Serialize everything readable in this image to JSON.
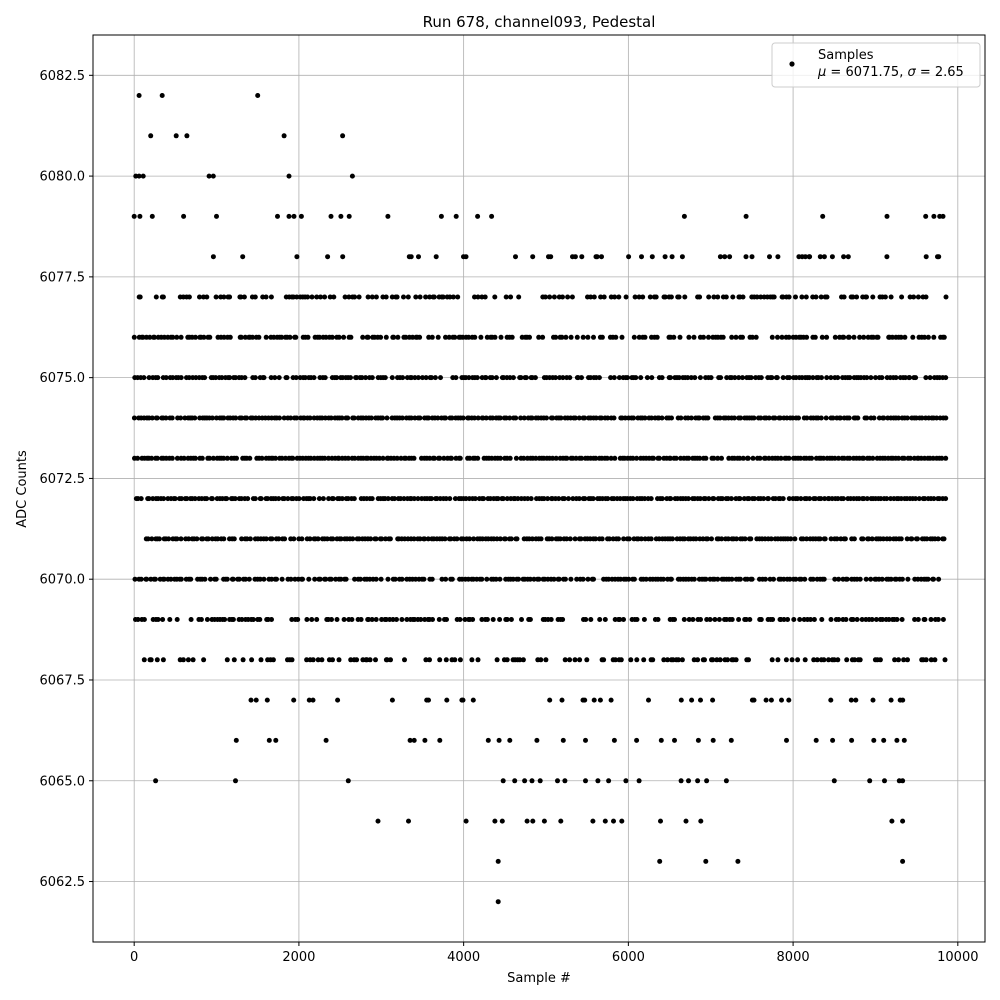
{
  "chart_data": {
    "type": "scatter",
    "title": "Run 678, channel093, Pedestal",
    "xlabel": "Sample #",
    "ylabel": "ADC Counts",
    "xlim": [
      -500,
      10330
    ],
    "ylim": [
      6061.0,
      6083.5
    ],
    "xticks": [
      0,
      2000,
      4000,
      6000,
      8000,
      10000
    ],
    "xtick_labels": [
      "0",
      "2000",
      "4000",
      "6000",
      "8000",
      "10000"
    ],
    "yticks": [
      6062.5,
      6065.0,
      6067.5,
      6070.0,
      6072.5,
      6075.0,
      6077.5,
      6080.0,
      6082.5
    ],
    "ytick_labels": [
      "6062.5",
      "6065.0",
      "6067.5",
      "6070.0",
      "6072.5",
      "6075.0",
      "6077.5",
      "6080.0",
      "6082.5"
    ],
    "grid": true,
    "legend": {
      "position": "top-right",
      "entries": [
        "Samples",
        "$\\mu$ = 6071.75, $\\sigma$ = 2.65"
      ],
      "label_line1": "Samples",
      "label_line2_mu": "μ",
      "label_line2_mid": " = 6071.75, ",
      "label_line2_sigma": "σ",
      "label_line2_end": " = 2.65"
    },
    "marker_color": "#000000",
    "series": [
      {
        "name": "Samples",
        "n_samples": 9840,
        "dense_levels": [
          {
            "y": 6067,
            "x_range": [
              1050,
              9330
            ],
            "density": 0.18
          },
          {
            "y": 6068,
            "x_range": [
              60,
              9840
            ],
            "density": 0.45
          },
          {
            "y": 6069,
            "x_range": [
              10,
              9840
            ],
            "density": 0.65
          },
          {
            "y": 6070,
            "x_range": [
              10,
              9840
            ],
            "density": 0.82
          },
          {
            "y": 6071,
            "x_range": [
              130,
              9840
            ],
            "density": 0.9
          },
          {
            "y": 6072,
            "x_range": [
              0,
              9840
            ],
            "density": 0.96
          },
          {
            "y": 6073,
            "x_range": [
              0,
              9840
            ],
            "density": 0.95
          },
          {
            "y": 6074,
            "x_range": [
              0,
              9840
            ],
            "density": 0.96
          },
          {
            "y": 6075,
            "x_range": [
              0,
              9840
            ],
            "density": 0.82
          },
          {
            "y": 6076,
            "x_range": [
              0,
              9840
            ],
            "density": 0.7
          },
          {
            "y": 6077,
            "x_range": [
              0,
              9840
            ],
            "density": 0.55
          },
          {
            "y": 6078,
            "x_range": [
              0,
              9840
            ],
            "density": 0.1
          }
        ],
        "sparse_points": [
          [
            60,
            6082
          ],
          [
            340,
            6082
          ],
          [
            1500,
            6082
          ],
          [
            200,
            6081
          ],
          [
            510,
            6081
          ],
          [
            640,
            6081
          ],
          [
            1820,
            6081
          ],
          [
            2530,
            6081
          ],
          [
            20,
            6080
          ],
          [
            60,
            6080
          ],
          [
            110,
            6080
          ],
          [
            910,
            6080
          ],
          [
            960,
            6080
          ],
          [
            1880,
            6080
          ],
          [
            2650,
            6080
          ],
          [
            0,
            6079
          ],
          [
            70,
            6079
          ],
          [
            220,
            6079
          ],
          [
            600,
            6079
          ],
          [
            1000,
            6079
          ],
          [
            1740,
            6079
          ],
          [
            1880,
            6079
          ],
          [
            1940,
            6079
          ],
          [
            2030,
            6079
          ],
          [
            2390,
            6079
          ],
          [
            2510,
            6079
          ],
          [
            2610,
            6079
          ],
          [
            3080,
            6079
          ],
          [
            3730,
            6079
          ],
          [
            3910,
            6079
          ],
          [
            4170,
            6079
          ],
          [
            4340,
            6079
          ],
          [
            6680,
            6079
          ],
          [
            7430,
            6079
          ],
          [
            8360,
            6079
          ],
          [
            9140,
            6079
          ],
          [
            9610,
            6079
          ],
          [
            9710,
            6079
          ],
          [
            9780,
            6079
          ],
          [
            9820,
            6079
          ],
          [
            4630,
            6078
          ],
          [
            5030,
            6078
          ],
          [
            5620,
            6078
          ],
          [
            6160,
            6078
          ],
          [
            6290,
            6078
          ],
          [
            7170,
            6078
          ],
          [
            8070,
            6078
          ],
          [
            8110,
            6078
          ],
          [
            8150,
            6078
          ],
          [
            8200,
            6078
          ],
          [
            8330,
            6078
          ],
          [
            8380,
            6078
          ],
          [
            8670,
            6078
          ],
          [
            1240,
            6066
          ],
          [
            1640,
            6066
          ],
          [
            1720,
            6066
          ],
          [
            2330,
            6066
          ],
          [
            3350,
            6066
          ],
          [
            3400,
            6066
          ],
          [
            3530,
            6066
          ],
          [
            3710,
            6066
          ],
          [
            4300,
            6066
          ],
          [
            4430,
            6066
          ],
          [
            4560,
            6066
          ],
          [
            4890,
            6066
          ],
          [
            5210,
            6066
          ],
          [
            5480,
            6066
          ],
          [
            5830,
            6066
          ],
          [
            6100,
            6066
          ],
          [
            6400,
            6066
          ],
          [
            6560,
            6066
          ],
          [
            6850,
            6066
          ],
          [
            7030,
            6066
          ],
          [
            7250,
            6066
          ],
          [
            7920,
            6066
          ],
          [
            8280,
            6066
          ],
          [
            8480,
            6066
          ],
          [
            8710,
            6066
          ],
          [
            8980,
            6066
          ],
          [
            9100,
            6066
          ],
          [
            9260,
            6066
          ],
          [
            9350,
            6066
          ],
          [
            260,
            6065
          ],
          [
            1230,
            6065
          ],
          [
            2600,
            6065
          ],
          [
            4480,
            6065
          ],
          [
            4620,
            6065
          ],
          [
            4740,
            6065
          ],
          [
            4830,
            6065
          ],
          [
            4930,
            6065
          ],
          [
            5140,
            6065
          ],
          [
            5230,
            6065
          ],
          [
            5480,
            6065
          ],
          [
            5630,
            6065
          ],
          [
            5760,
            6065
          ],
          [
            5970,
            6065
          ],
          [
            6130,
            6065
          ],
          [
            6640,
            6065
          ],
          [
            6730,
            6065
          ],
          [
            6840,
            6065
          ],
          [
            6950,
            6065
          ],
          [
            7190,
            6065
          ],
          [
            8500,
            6065
          ],
          [
            8930,
            6065
          ],
          [
            9110,
            6065
          ],
          [
            9290,
            6065
          ],
          [
            9330,
            6065
          ],
          [
            2960,
            6064
          ],
          [
            3330,
            6064
          ],
          [
            4030,
            6064
          ],
          [
            4380,
            6064
          ],
          [
            4470,
            6064
          ],
          [
            4770,
            6064
          ],
          [
            4840,
            6064
          ],
          [
            4980,
            6064
          ],
          [
            5180,
            6064
          ],
          [
            5570,
            6064
          ],
          [
            5720,
            6064
          ],
          [
            5820,
            6064
          ],
          [
            5920,
            6064
          ],
          [
            6390,
            6064
          ],
          [
            6700,
            6064
          ],
          [
            6880,
            6064
          ],
          [
            9200,
            6064
          ],
          [
            9330,
            6064
          ],
          [
            4420,
            6063
          ],
          [
            6380,
            6063
          ],
          [
            6940,
            6063
          ],
          [
            7330,
            6063
          ],
          [
            9330,
            6063
          ],
          [
            4420,
            6062
          ]
        ]
      }
    ]
  }
}
